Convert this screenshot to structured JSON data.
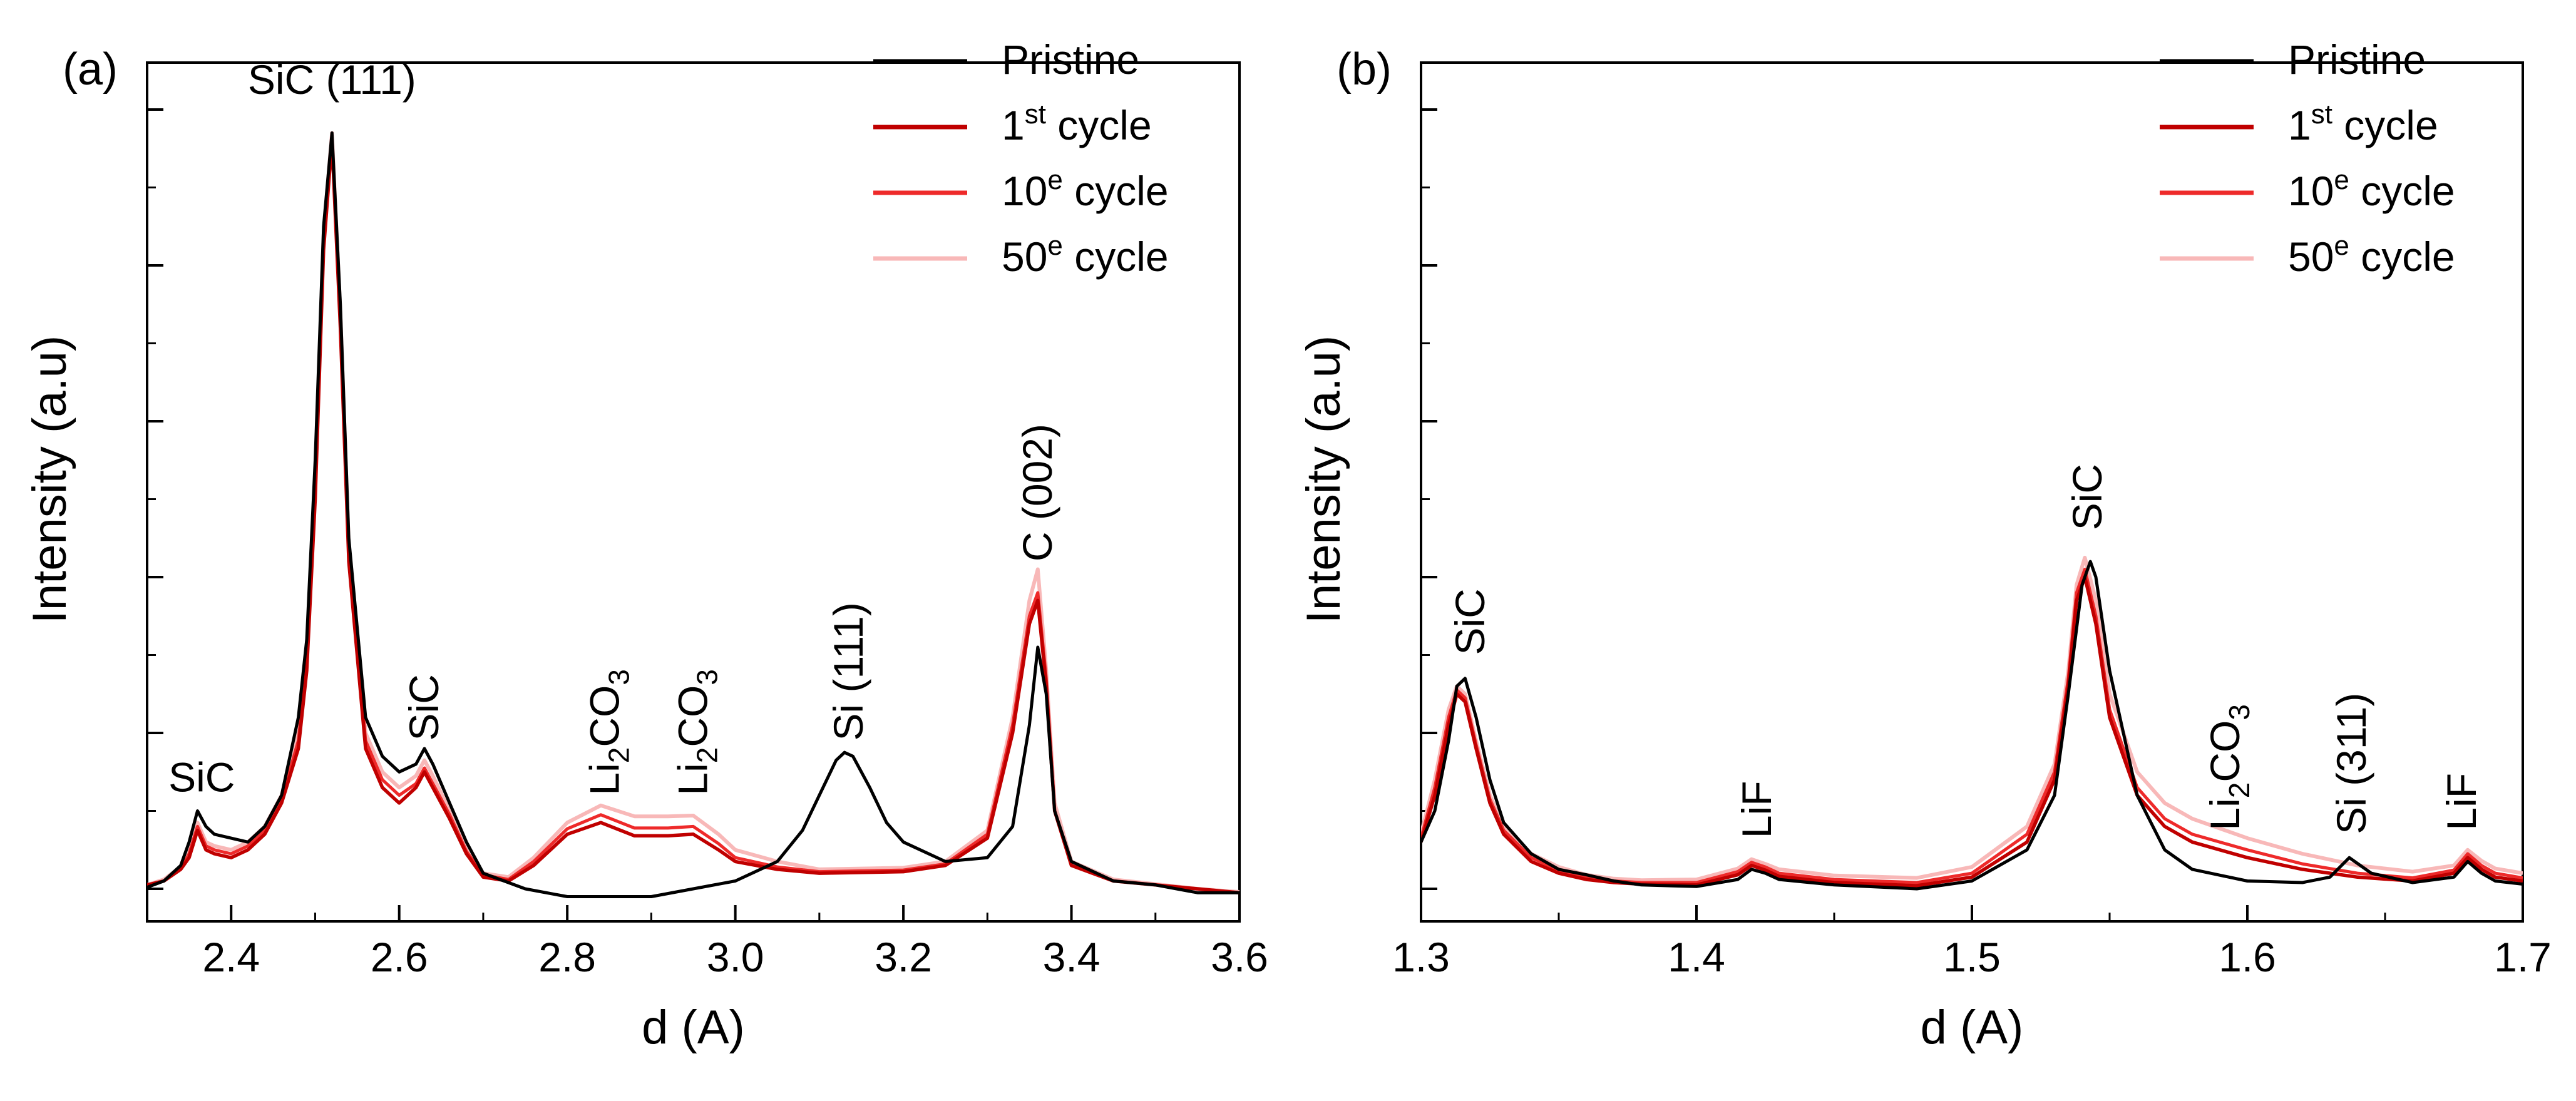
{
  "chart_data": [
    {
      "type": "line",
      "panel_label": "(a)",
      "xlabel": "d (A)",
      "ylabel": "Intensity (a.u)",
      "xlim": [
        2.3,
        3.6
      ],
      "ylim": [
        0,
        1.0
      ],
      "xticks": [
        2.4,
        2.6,
        2.8,
        3.0,
        3.2,
        3.4,
        3.6
      ],
      "xtick_labels": [
        "2.4",
        "2.6",
        "2.8",
        "3.0",
        "3.2",
        "3.4",
        "3.6"
      ],
      "legend_position": "top-right",
      "legend": [
        {
          "pre": "Pristine",
          "sup": "",
          "post": ""
        },
        {
          "pre": "1",
          "sup": "st",
          "post": " cycle"
        },
        {
          "pre": "10",
          "sup": "e",
          "post": " cycle"
        },
        {
          "pre": "50",
          "sup": "e",
          "post": " cycle"
        }
      ],
      "colors": [
        "#000000",
        "#c00000",
        "#ee2a2a",
        "#f8b8b8"
      ],
      "series": [
        {
          "name": "Pristine",
          "x": [
            2.3,
            2.32,
            2.34,
            2.35,
            2.36,
            2.37,
            2.38,
            2.4,
            2.42,
            2.44,
            2.46,
            2.48,
            2.49,
            2.5,
            2.51,
            2.52,
            2.53,
            2.54,
            2.56,
            2.58,
            2.6,
            2.62,
            2.63,
            2.64,
            2.66,
            2.68,
            2.7,
            2.75,
            2.8,
            2.9,
            3.0,
            3.05,
            3.08,
            3.1,
            3.12,
            3.13,
            3.14,
            3.16,
            3.18,
            3.2,
            3.25,
            3.3,
            3.33,
            3.35,
            3.36,
            3.37,
            3.38,
            3.4,
            3.45,
            3.5,
            3.55,
            3.6
          ],
          "y": [
            0.002,
            0.01,
            0.03,
            0.06,
            0.1,
            0.08,
            0.07,
            0.065,
            0.06,
            0.08,
            0.12,
            0.22,
            0.32,
            0.55,
            0.85,
            0.97,
            0.75,
            0.45,
            0.22,
            0.17,
            0.15,
            0.16,
            0.18,
            0.16,
            0.11,
            0.06,
            0.02,
            0.0,
            -0.01,
            -0.01,
            0.01,
            0.035,
            0.075,
            0.12,
            0.165,
            0.175,
            0.17,
            0.13,
            0.085,
            0.06,
            0.035,
            0.04,
            0.08,
            0.21,
            0.31,
            0.25,
            0.1,
            0.035,
            0.01,
            0.005,
            -0.005,
            -0.005
          ]
        },
        {
          "name": "1st cycle",
          "x": [
            2.3,
            2.32,
            2.34,
            2.35,
            2.36,
            2.37,
            2.38,
            2.4,
            2.42,
            2.44,
            2.46,
            2.48,
            2.49,
            2.5,
            2.51,
            2.52,
            2.53,
            2.54,
            2.56,
            2.58,
            2.6,
            2.62,
            2.63,
            2.64,
            2.66,
            2.68,
            2.7,
            2.73,
            2.76,
            2.8,
            2.84,
            2.88,
            2.92,
            2.95,
            2.98,
            3.0,
            3.05,
            3.1,
            3.2,
            3.25,
            3.3,
            3.33,
            3.35,
            3.36,
            3.37,
            3.38,
            3.4,
            3.45,
            3.5,
            3.55,
            3.6
          ],
          "y": [
            0.005,
            0.01,
            0.025,
            0.04,
            0.075,
            0.05,
            0.045,
            0.04,
            0.05,
            0.07,
            0.11,
            0.18,
            0.28,
            0.5,
            0.82,
            0.96,
            0.72,
            0.42,
            0.18,
            0.13,
            0.11,
            0.13,
            0.15,
            0.13,
            0.09,
            0.045,
            0.015,
            0.01,
            0.03,
            0.07,
            0.085,
            0.068,
            0.068,
            0.07,
            0.05,
            0.035,
            0.025,
            0.02,
            0.022,
            0.03,
            0.065,
            0.2,
            0.34,
            0.37,
            0.26,
            0.1,
            0.03,
            0.01,
            0.005,
            0.0,
            -0.005
          ]
        },
        {
          "name": "10e cycle",
          "x": [
            2.3,
            2.32,
            2.34,
            2.35,
            2.36,
            2.37,
            2.38,
            2.4,
            2.42,
            2.44,
            2.46,
            2.48,
            2.49,
            2.5,
            2.51,
            2.52,
            2.53,
            2.54,
            2.56,
            2.58,
            2.6,
            2.62,
            2.63,
            2.64,
            2.66,
            2.68,
            2.7,
            2.73,
            2.76,
            2.8,
            2.84,
            2.88,
            2.92,
            2.95,
            2.98,
            3.0,
            3.05,
            3.1,
            3.2,
            3.25,
            3.3,
            3.33,
            3.35,
            3.36,
            3.37,
            3.38,
            3.4,
            3.45,
            3.5,
            3.55,
            3.6
          ],
          "y": [
            0.005,
            0.01,
            0.025,
            0.045,
            0.08,
            0.055,
            0.05,
            0.045,
            0.055,
            0.075,
            0.115,
            0.19,
            0.29,
            0.51,
            0.83,
            0.965,
            0.73,
            0.43,
            0.19,
            0.14,
            0.12,
            0.135,
            0.155,
            0.135,
            0.095,
            0.048,
            0.018,
            0.012,
            0.035,
            0.077,
            0.095,
            0.078,
            0.078,
            0.08,
            0.058,
            0.04,
            0.028,
            0.022,
            0.024,
            0.032,
            0.07,
            0.21,
            0.35,
            0.38,
            0.27,
            0.1,
            0.03,
            0.01,
            0.005,
            0.0,
            -0.005
          ]
        },
        {
          "name": "50e cycle",
          "x": [
            2.3,
            2.32,
            2.34,
            2.35,
            2.36,
            2.37,
            2.38,
            2.4,
            2.42,
            2.44,
            2.46,
            2.48,
            2.49,
            2.5,
            2.51,
            2.52,
            2.53,
            2.54,
            2.56,
            2.58,
            2.6,
            2.62,
            2.63,
            2.64,
            2.66,
            2.68,
            2.7,
            2.73,
            2.76,
            2.8,
            2.84,
            2.88,
            2.92,
            2.95,
            2.98,
            3.0,
            3.05,
            3.1,
            3.2,
            3.25,
            3.3,
            3.33,
            3.35,
            3.36,
            3.37,
            3.38,
            3.4,
            3.45,
            3.5,
            3.55,
            3.6
          ],
          "y": [
            0.005,
            0.012,
            0.028,
            0.05,
            0.085,
            0.06,
            0.055,
            0.05,
            0.06,
            0.08,
            0.12,
            0.2,
            0.3,
            0.52,
            0.84,
            0.97,
            0.74,
            0.44,
            0.2,
            0.15,
            0.13,
            0.145,
            0.165,
            0.145,
            0.1,
            0.052,
            0.02,
            0.015,
            0.04,
            0.085,
            0.107,
            0.093,
            0.093,
            0.094,
            0.07,
            0.05,
            0.035,
            0.025,
            0.027,
            0.035,
            0.075,
            0.22,
            0.37,
            0.41,
            0.28,
            0.11,
            0.035,
            0.012,
            0.006,
            0.0,
            -0.004
          ]
        }
      ],
      "annotations": [
        {
          "text": "SiC (111)",
          "sub": "",
          "tail": "",
          "x": 2.52,
          "y": 1.02,
          "rotate": false
        },
        {
          "text": "SiC",
          "sub": "",
          "tail": "",
          "x": 2.365,
          "y": 0.125,
          "rotate": false
        },
        {
          "text": "SiC",
          "sub": "",
          "tail": "",
          "x": 2.63,
          "y": 0.19,
          "rotate": true
        },
        {
          "text": "Li",
          "sub": "2",
          "tail": "CO",
          "x": 2.845,
          "y": 0.12,
          "rotate": true
        },
        {
          "text": "Li",
          "sub": "2",
          "tail": "CO",
          "x": 2.95,
          "y": 0.12,
          "rotate": true
        },
        {
          "text": "Si (111)",
          "sub": "",
          "tail": "",
          "x": 3.135,
          "y": 0.19,
          "rotate": true
        },
        {
          "text": "C (002)",
          "sub": "",
          "tail": "",
          "x": 3.36,
          "y": 0.42,
          "rotate": true
        }
      ],
      "annotation_sub3": "3"
    },
    {
      "type": "line",
      "panel_label": "(b)",
      "xlabel": "d (A)",
      "ylabel": "Intensity (a.u)",
      "xlim": [
        1.3,
        1.7
      ],
      "ylim": [
        0,
        1.0
      ],
      "xticks": [
        1.3,
        1.4,
        1.5,
        1.6,
        1.7
      ],
      "xtick_labels": [
        "1.3",
        "1.4",
        "1.5",
        "1.6",
        "1.7"
      ],
      "legend_position": "top-right",
      "legend": [
        {
          "pre": "Pristine",
          "sup": "",
          "post": ""
        },
        {
          "pre": "1",
          "sup": "st",
          "post": " cycle"
        },
        {
          "pre": "10",
          "sup": "e",
          "post": " cycle"
        },
        {
          "pre": "50",
          "sup": "e",
          "post": " cycle"
        }
      ],
      "colors": [
        "#000000",
        "#c00000",
        "#ee2a2a",
        "#f8b8b8"
      ],
      "series": [
        {
          "name": "Pristine",
          "x": [
            1.3,
            1.305,
            1.31,
            1.313,
            1.316,
            1.32,
            1.325,
            1.33,
            1.34,
            1.35,
            1.36,
            1.37,
            1.38,
            1.4,
            1.415,
            1.42,
            1.425,
            1.43,
            1.45,
            1.48,
            1.5,
            1.52,
            1.53,
            1.535,
            1.54,
            1.543,
            1.545,
            1.55,
            1.56,
            1.57,
            1.58,
            1.6,
            1.62,
            1.63,
            1.637,
            1.645,
            1.66,
            1.675,
            1.68,
            1.685,
            1.69,
            1.7
          ],
          "y": [
            0.06,
            0.1,
            0.19,
            0.26,
            0.27,
            0.22,
            0.14,
            0.085,
            0.045,
            0.025,
            0.018,
            0.01,
            0.005,
            0.003,
            0.012,
            0.025,
            0.02,
            0.012,
            0.005,
            0.0,
            0.01,
            0.05,
            0.12,
            0.25,
            0.39,
            0.42,
            0.4,
            0.28,
            0.12,
            0.05,
            0.025,
            0.01,
            0.008,
            0.015,
            0.04,
            0.02,
            0.008,
            0.015,
            0.035,
            0.02,
            0.01,
            0.006
          ]
        },
        {
          "name": "1st cycle",
          "x": [
            1.3,
            1.305,
            1.31,
            1.313,
            1.316,
            1.32,
            1.325,
            1.33,
            1.34,
            1.35,
            1.36,
            1.37,
            1.38,
            1.4,
            1.415,
            1.42,
            1.425,
            1.43,
            1.45,
            1.48,
            1.5,
            1.52,
            1.53,
            1.535,
            1.538,
            1.541,
            1.545,
            1.55,
            1.56,
            1.57,
            1.58,
            1.6,
            1.62,
            1.64,
            1.66,
            1.675,
            1.68,
            1.685,
            1.69,
            1.7
          ],
          "y": [
            0.06,
            0.12,
            0.21,
            0.25,
            0.24,
            0.18,
            0.11,
            0.07,
            0.035,
            0.02,
            0.012,
            0.008,
            0.006,
            0.005,
            0.018,
            0.03,
            0.024,
            0.016,
            0.008,
            0.004,
            0.015,
            0.06,
            0.14,
            0.26,
            0.37,
            0.4,
            0.34,
            0.22,
            0.12,
            0.08,
            0.06,
            0.04,
            0.025,
            0.015,
            0.01,
            0.02,
            0.04,
            0.025,
            0.015,
            0.01
          ]
        },
        {
          "name": "10e cycle",
          "x": [
            1.3,
            1.305,
            1.31,
            1.313,
            1.316,
            1.32,
            1.325,
            1.33,
            1.34,
            1.35,
            1.36,
            1.37,
            1.38,
            1.4,
            1.415,
            1.42,
            1.425,
            1.43,
            1.45,
            1.48,
            1.5,
            1.52,
            1.53,
            1.535,
            1.538,
            1.541,
            1.545,
            1.55,
            1.56,
            1.57,
            1.58,
            1.6,
            1.62,
            1.64,
            1.66,
            1.675,
            1.68,
            1.685,
            1.69,
            1.7
          ],
          "y": [
            0.065,
            0.13,
            0.22,
            0.255,
            0.245,
            0.185,
            0.115,
            0.075,
            0.04,
            0.024,
            0.015,
            0.01,
            0.008,
            0.008,
            0.022,
            0.034,
            0.028,
            0.02,
            0.012,
            0.008,
            0.02,
            0.07,
            0.15,
            0.27,
            0.38,
            0.41,
            0.35,
            0.23,
            0.13,
            0.09,
            0.07,
            0.05,
            0.032,
            0.02,
            0.014,
            0.024,
            0.045,
            0.03,
            0.02,
            0.014
          ]
        },
        {
          "name": "50e cycle",
          "x": [
            1.3,
            1.305,
            1.31,
            1.313,
            1.316,
            1.32,
            1.325,
            1.33,
            1.34,
            1.35,
            1.36,
            1.37,
            1.38,
            1.4,
            1.415,
            1.42,
            1.425,
            1.43,
            1.45,
            1.48,
            1.5,
            1.52,
            1.53,
            1.535,
            1.538,
            1.541,
            1.545,
            1.55,
            1.56,
            1.57,
            1.58,
            1.6,
            1.62,
            1.64,
            1.66,
            1.675,
            1.68,
            1.685,
            1.69,
            1.7
          ],
          "y": [
            0.07,
            0.14,
            0.23,
            0.26,
            0.25,
            0.19,
            0.12,
            0.08,
            0.045,
            0.028,
            0.018,
            0.013,
            0.011,
            0.012,
            0.026,
            0.038,
            0.032,
            0.025,
            0.017,
            0.014,
            0.028,
            0.08,
            0.16,
            0.28,
            0.39,
            0.425,
            0.37,
            0.25,
            0.15,
            0.11,
            0.09,
            0.065,
            0.045,
            0.03,
            0.022,
            0.03,
            0.05,
            0.036,
            0.026,
            0.02
          ]
        }
      ],
      "annotations": [
        {
          "text": "SiC",
          "sub": "",
          "tail": "",
          "x": 1.318,
          "y": 0.3,
          "rotate": true
        },
        {
          "text": "LiF",
          "sub": "",
          "tail": "",
          "x": 1.422,
          "y": 0.065,
          "rotate": true
        },
        {
          "text": "SiC",
          "sub": "",
          "tail": "",
          "x": 1.542,
          "y": 0.46,
          "rotate": true
        },
        {
          "text": "Li",
          "sub": "2",
          "tail": "CO",
          "x": 1.592,
          "y": 0.075,
          "rotate": true
        },
        {
          "text": "Si (311)",
          "sub": "",
          "tail": "",
          "x": 1.638,
          "y": 0.07,
          "rotate": true
        },
        {
          "text": "LiF",
          "sub": "",
          "tail": "",
          "x": 1.678,
          "y": 0.075,
          "rotate": true
        }
      ],
      "annotation_sub3": "3"
    }
  ]
}
